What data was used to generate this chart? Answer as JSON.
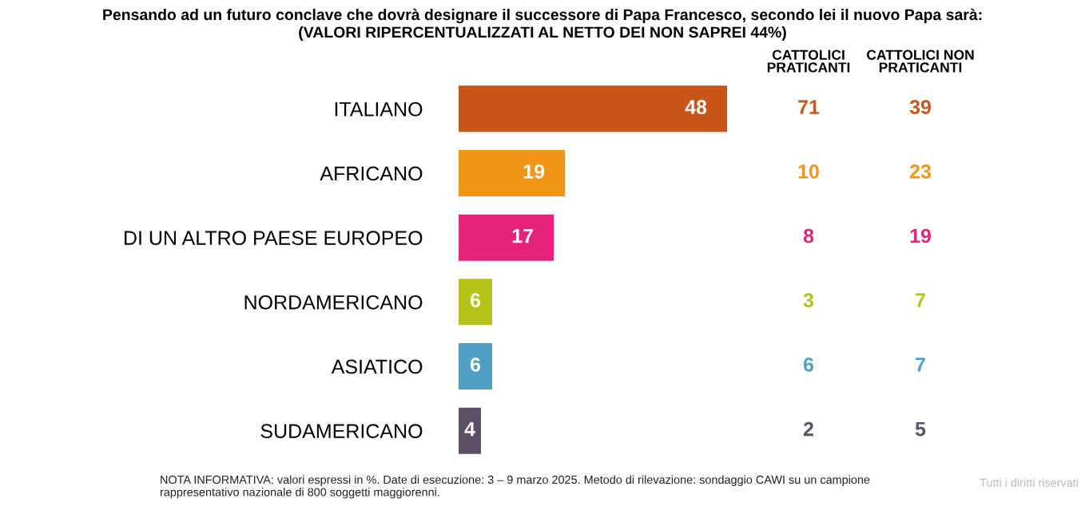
{
  "chart_data": [
    {
      "type": "bar",
      "orientation": "horizontal",
      "title": "Pensando ad un futuro conclave che dovrà designare il successore di Papa Francesco, secondo lei il nuovo Papa sarà:",
      "subtitle": "(VALORI RIPERCENTUALIZZATI AL NETTO DEI NON SAPREI 44%)",
      "categories": [
        "ITALIANO",
        "AFRICANO",
        "DI UN ALTRO PAESE EUROPEO",
        "NORDAMERICANO",
        "ASIATICO",
        "SUDAMERICANO"
      ],
      "values": [
        48,
        19,
        17,
        6,
        6,
        4
      ],
      "colors": [
        "#c8561a",
        "#f39419",
        "#e6237a",
        "#b5c21a",
        "#4f9fc4",
        "#5b4f66"
      ],
      "data_labels": true,
      "tick_labels": "y",
      "annotations": [
        "NOTA INFORMATIVA: valori espressi in %. Date di esecuzione: 3 – 9 marzo 2025. Metodo di rilevazione: sondaggio CAWI su un campione\nrappresentativo nazionale di 800 soggetti maggiorenni.",
        "Tutti i diritti riservati"
      ]
    },
    {
      "type": "other",
      "title": "CATTOLICI PRATICANTI",
      "values": [
        71,
        10,
        8,
        3,
        6,
        2
      ],
      "colors": [
        "#c8561a",
        "#f39419",
        "#e6237a",
        "#b5c21a",
        "#4f9fc4",
        "#5b4f66"
      ],
      "data_labels": true
    },
    {
      "type": "other",
      "title": "CATTOLICI NON PRATICANTI",
      "values": [
        39,
        23,
        19,
        7,
        7,
        5
      ],
      "colors": [
        "#c8561a",
        "#f39419",
        "#e6237a",
        "#b5c21a",
        "#4f9fc4",
        "#5b4f66"
      ],
      "data_labels": true
    }
  ]
}
